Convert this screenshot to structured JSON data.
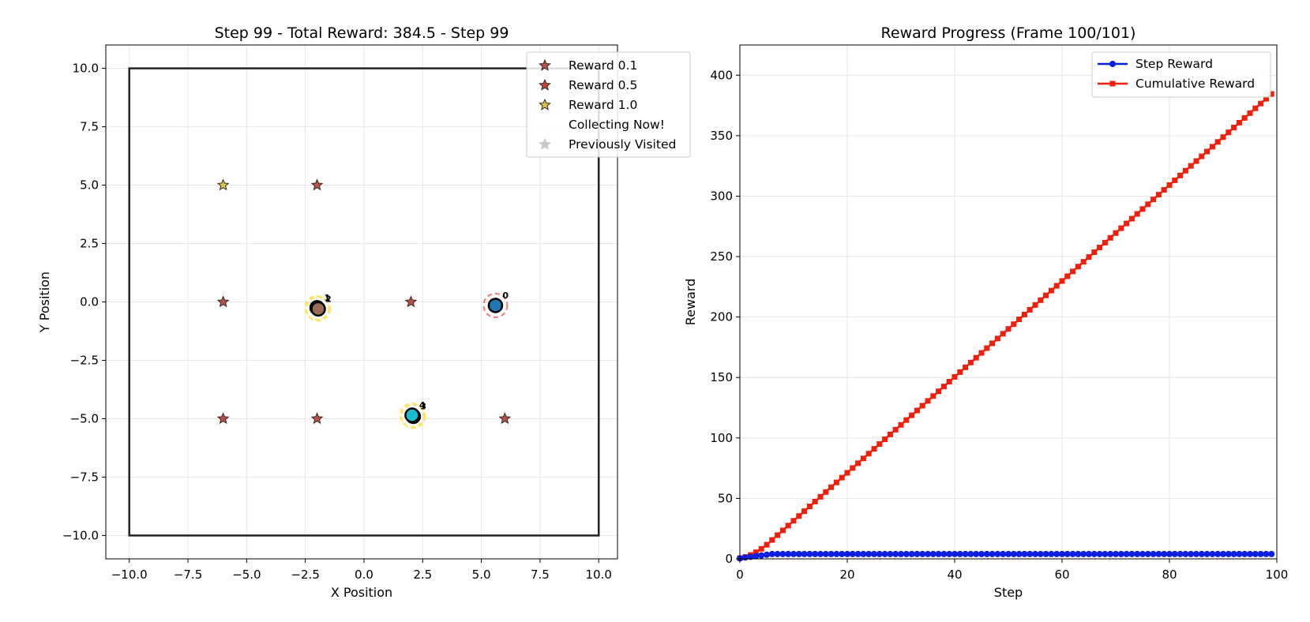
{
  "chart_data": [
    {
      "type": "scatter",
      "title": "Step 99 - Total Reward: 384.5 - Step 99",
      "xlabel": "X Position",
      "ylabel": "Y Position",
      "xlim": [
        -11,
        10.8
      ],
      "ylim": [
        -11,
        11
      ],
      "xticks": [
        -10.0,
        -7.5,
        -5.0,
        -2.5,
        0.0,
        2.5,
        5.0,
        7.5,
        10.0
      ],
      "yticks": [
        -10.0,
        -7.5,
        -5.0,
        -2.5,
        0.0,
        2.5,
        5.0,
        7.5,
        10.0
      ],
      "grid": true,
      "legend_position": "upper-right",
      "boundary": [
        [
          -10,
          -10
        ],
        [
          10,
          10
        ]
      ],
      "legend": [
        {
          "label": "Reward 0.1",
          "color": "#b5504a",
          "marker": "star"
        },
        {
          "label": "Reward 0.5",
          "color": "#c2423e",
          "marker": "star"
        },
        {
          "label": "Reward 1.0",
          "color": "#d8c44a",
          "marker": "star"
        },
        {
          "label": "Collecting Now!",
          "color": "#ffffff",
          "marker": "none"
        },
        {
          "label": "Previously Visited",
          "color": "#c8c8c8",
          "marker": "star"
        }
      ],
      "rewards": [
        {
          "x": -6,
          "y": 5,
          "value": 1.0
        },
        {
          "x": -2,
          "y": 5,
          "value": 0.5
        },
        {
          "x": -6,
          "y": 0,
          "value": 0.5
        },
        {
          "x": 2,
          "y": 0,
          "value": 0.5
        },
        {
          "x": -6,
          "y": -5,
          "value": 0.5
        },
        {
          "x": -2,
          "y": -5,
          "value": 0.5
        },
        {
          "x": 6,
          "y": -5,
          "value": 0.5
        }
      ],
      "agents": [
        {
          "label": "0",
          "x": 5.6,
          "y": -0.15,
          "color": "#1f77b4",
          "ring": "#f07c6c"
        },
        {
          "label": "1",
          "x": -2.0,
          "y": -0.25,
          "color": "#8c5a4a",
          "ring": "#ffe45c"
        },
        {
          "label": "2",
          "x": -1.95,
          "y": -0.3,
          "color": "#9a6b52",
          "ring": "#ffe45c"
        },
        {
          "label": "3",
          "x": 2.1,
          "y": -4.9,
          "color": "#1b2a3a",
          "ring": "#ffe45c"
        },
        {
          "label": "4",
          "x": 2.05,
          "y": -4.85,
          "color": "#17becf",
          "ring": "#ffe45c"
        }
      ]
    },
    {
      "type": "line",
      "title": "Reward Progress (Frame 100/101)",
      "xlabel": "Step",
      "ylabel": "Reward",
      "xlim": [
        0,
        100
      ],
      "ylim": [
        0,
        425
      ],
      "xticks": [
        0,
        20,
        40,
        60,
        80,
        100
      ],
      "yticks": [
        0,
        50,
        100,
        150,
        200,
        250,
        300,
        350,
        400
      ],
      "grid": true,
      "legend_position": "upper-right",
      "series": [
        {
          "name": "Step Reward",
          "color": "#0a1fe0",
          "marker": "circle",
          "start_value": 0.5,
          "steady_value": 4.0,
          "ramp_end_step": 6,
          "steps": 100
        },
        {
          "name": "Cumulative Reward",
          "color": "#f01e0a",
          "marker": "square",
          "start_value": 0.5,
          "final_value": 384.5,
          "steps": 100
        }
      ]
    }
  ]
}
